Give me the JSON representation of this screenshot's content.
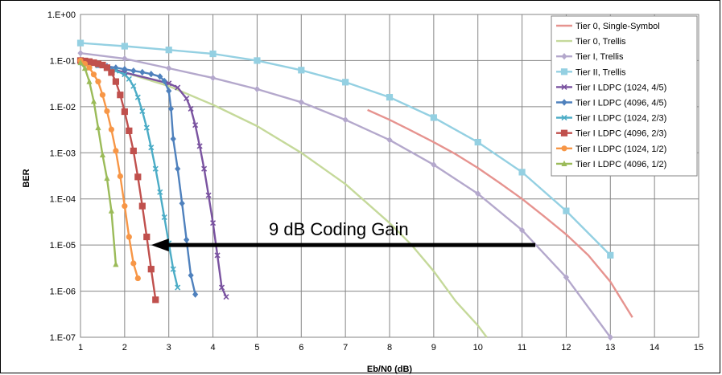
{
  "chart_data": {
    "type": "line",
    "title": "",
    "xlabel": "Eb/N0 (dB)",
    "ylabel": "BER",
    "xlim": [
      1,
      15
    ],
    "ylim": [
      1e-07,
      1
    ],
    "y_scale": "log",
    "grid": true,
    "legend_position": "top-right",
    "x_ticks": [
      "1",
      "2",
      "3",
      "4",
      "5",
      "6",
      "7",
      "8",
      "9",
      "10",
      "11",
      "12",
      "13",
      "14",
      "15"
    ],
    "y_ticks": [
      "1.E+00",
      "1.E-01",
      "1.E-02",
      "1.E-03",
      "1.E-04",
      "1.E-05",
      "1.E-06",
      "1.E-07"
    ],
    "annotation": {
      "text": "9 dB Coding Gain",
      "arrow_from": [
        11.3,
        1e-05
      ],
      "arrow_to": [
        2.6,
        1e-05
      ]
    },
    "series": [
      {
        "name": "Tier 0, Single-Symbol",
        "color": "#e6938f",
        "marker": "none",
        "points": [
          [
            7.5,
            0.0085
          ],
          [
            8,
            0.0052
          ],
          [
            8.5,
            0.003
          ],
          [
            9,
            0.0017
          ],
          [
            9.5,
            0.00093
          ],
          [
            10,
            0.00047
          ],
          [
            10.5,
            0.00022
          ],
          [
            11,
            0.0001
          ],
          [
            11.5,
            4.2e-05
          ],
          [
            12,
            1.7e-05
          ],
          [
            12.5,
            6e-06
          ],
          [
            13,
            1.6e-06
          ],
          [
            13.5,
            2.7e-07
          ]
        ]
      },
      {
        "name": "Tier 0, Trellis",
        "color": "#c5d99a",
        "marker": "none",
        "points": [
          [
            1,
            0.1
          ],
          [
            2,
            0.055
          ],
          [
            3,
            0.028
          ],
          [
            4,
            0.011
          ],
          [
            5,
            0.0038
          ],
          [
            6,
            0.001
          ],
          [
            7,
            0.00021
          ],
          [
            8,
            3e-05
          ],
          [
            8.5,
            1e-05
          ],
          [
            9,
            2.7e-06
          ],
          [
            9.5,
            6e-07
          ],
          [
            10,
            1.8e-07
          ],
          [
            10.2,
            1e-07
          ]
        ]
      },
      {
        "name": "Tier I, Trellis",
        "color": "#b4a8cc",
        "marker": "diamond",
        "points": [
          [
            1,
            0.145
          ],
          [
            2,
            0.11
          ],
          [
            3,
            0.068
          ],
          [
            4,
            0.042
          ],
          [
            5,
            0.024
          ],
          [
            6,
            0.0125
          ],
          [
            7,
            0.0052
          ],
          [
            8,
            0.0019
          ],
          [
            9,
            0.00055
          ],
          [
            10,
            0.00013
          ],
          [
            11,
            2.1e-05
          ],
          [
            12,
            2e-06
          ],
          [
            13,
            1e-07
          ]
        ]
      },
      {
        "name": "Tier II, Trellis",
        "color": "#94d0e2",
        "marker": "square",
        "points": [
          [
            1,
            0.24
          ],
          [
            2,
            0.205
          ],
          [
            3,
            0.17
          ],
          [
            4,
            0.14
          ],
          [
            5,
            0.1
          ],
          [
            6,
            0.062
          ],
          [
            7,
            0.034
          ],
          [
            8,
            0.016
          ],
          [
            9,
            0.0058
          ],
          [
            10,
            0.0017
          ],
          [
            11,
            0.00038
          ],
          [
            12,
            5.5e-05
          ],
          [
            13,
            6e-06
          ]
        ]
      },
      {
        "name": "Tier I LDPC (1024, 4/5)",
        "color": "#7a53a0",
        "marker": "x",
        "points": [
          [
            1,
            0.1
          ],
          [
            2,
            0.055
          ],
          [
            3,
            0.032
          ],
          [
            3.2,
            0.026
          ],
          [
            3.4,
            0.015
          ],
          [
            3.5,
            0.009
          ],
          [
            3.6,
            0.004
          ],
          [
            3.7,
            0.0014
          ],
          [
            3.8,
            0.00045
          ],
          [
            3.9,
            0.00012
          ],
          [
            4.0,
            3e-05
          ],
          [
            4.1,
            6e-06
          ],
          [
            4.2,
            1.2e-06
          ],
          [
            4.3,
            7.5e-07
          ]
        ]
      },
      {
        "name": "Tier I LDPC (4096, 4/5)",
        "color": "#4f81bd",
        "marker": "diamond",
        "points": [
          [
            1,
            0.09
          ],
          [
            1.2,
            0.085
          ],
          [
            1.4,
            0.08
          ],
          [
            1.6,
            0.075
          ],
          [
            1.8,
            0.07
          ],
          [
            2,
            0.065
          ],
          [
            2.2,
            0.06
          ],
          [
            2.4,
            0.056
          ],
          [
            2.6,
            0.051
          ],
          [
            2.8,
            0.045
          ],
          [
            2.9,
            0.036
          ],
          [
            3.0,
            0.022
          ],
          [
            3.05,
            0.009
          ],
          [
            3.1,
            0.002
          ],
          [
            3.2,
            0.00045
          ],
          [
            3.3,
            8e-05
          ],
          [
            3.4,
            1.3e-05
          ],
          [
            3.5,
            2.2e-06
          ],
          [
            3.6,
            8.5e-07
          ]
        ]
      },
      {
        "name": "Tier I LDPC (1024, 2/3)",
        "color": "#4bacc6",
        "marker": "x",
        "points": [
          [
            1,
            0.1
          ],
          [
            1.2,
            0.088
          ],
          [
            1.4,
            0.078
          ],
          [
            1.6,
            0.068
          ],
          [
            1.8,
            0.06
          ],
          [
            2.0,
            0.05
          ],
          [
            2.1,
            0.04
          ],
          [
            2.2,
            0.028
          ],
          [
            2.3,
            0.016
          ],
          [
            2.4,
            0.008
          ],
          [
            2.5,
            0.0035
          ],
          [
            2.6,
            0.0013
          ],
          [
            2.7,
            0.00045
          ],
          [
            2.8,
            0.00014
          ],
          [
            2.9,
            4e-05
          ],
          [
            3.0,
            1.1e-05
          ],
          [
            3.1,
            3e-06
          ],
          [
            3.2,
            1.2e-06
          ]
        ]
      },
      {
        "name": "Tier I LDPC (4096, 2/3)",
        "color": "#c0504d",
        "marker": "square",
        "points": [
          [
            1,
            0.1
          ],
          [
            1.1,
            0.098
          ],
          [
            1.2,
            0.095
          ],
          [
            1.3,
            0.09
          ],
          [
            1.4,
            0.085
          ],
          [
            1.5,
            0.08
          ],
          [
            1.6,
            0.07
          ],
          [
            1.7,
            0.055
          ],
          [
            1.8,
            0.035
          ],
          [
            1.9,
            0.018
          ],
          [
            2.0,
            0.0078
          ],
          [
            2.1,
            0.003
          ],
          [
            2.2,
            0.0011
          ],
          [
            2.3,
            0.0003
          ],
          [
            2.4,
            7e-05
          ],
          [
            2.5,
            1.5e-05
          ],
          [
            2.6,
            3e-06
          ],
          [
            2.7,
            6.5e-07
          ]
        ]
      },
      {
        "name": "Tier I LDPC (1024, 1/2)",
        "color": "#f79646",
        "marker": "circle",
        "points": [
          [
            1,
            0.1
          ],
          [
            1.1,
            0.085
          ],
          [
            1.2,
            0.07
          ],
          [
            1.3,
            0.05
          ],
          [
            1.4,
            0.035
          ],
          [
            1.5,
            0.018
          ],
          [
            1.6,
            0.008
          ],
          [
            1.7,
            0.0032
          ],
          [
            1.8,
            0.0011
          ],
          [
            1.9,
            0.00031
          ],
          [
            2.0,
            7e-05
          ],
          [
            2.1,
            1.5e-05
          ],
          [
            2.2,
            4e-06
          ],
          [
            2.3,
            1.9e-06
          ]
        ]
      },
      {
        "name": "Tier I LDPC (4096, 1/2)",
        "color": "#9bbb59",
        "marker": "triangle",
        "points": [
          [
            1,
            0.09
          ],
          [
            1.1,
            0.068
          ],
          [
            1.2,
            0.035
          ],
          [
            1.3,
            0.013
          ],
          [
            1.4,
            0.0035
          ],
          [
            1.5,
            0.0009
          ],
          [
            1.6,
            0.00028
          ],
          [
            1.7,
            5.5e-05
          ],
          [
            1.8,
            3.8e-06
          ]
        ]
      }
    ]
  }
}
